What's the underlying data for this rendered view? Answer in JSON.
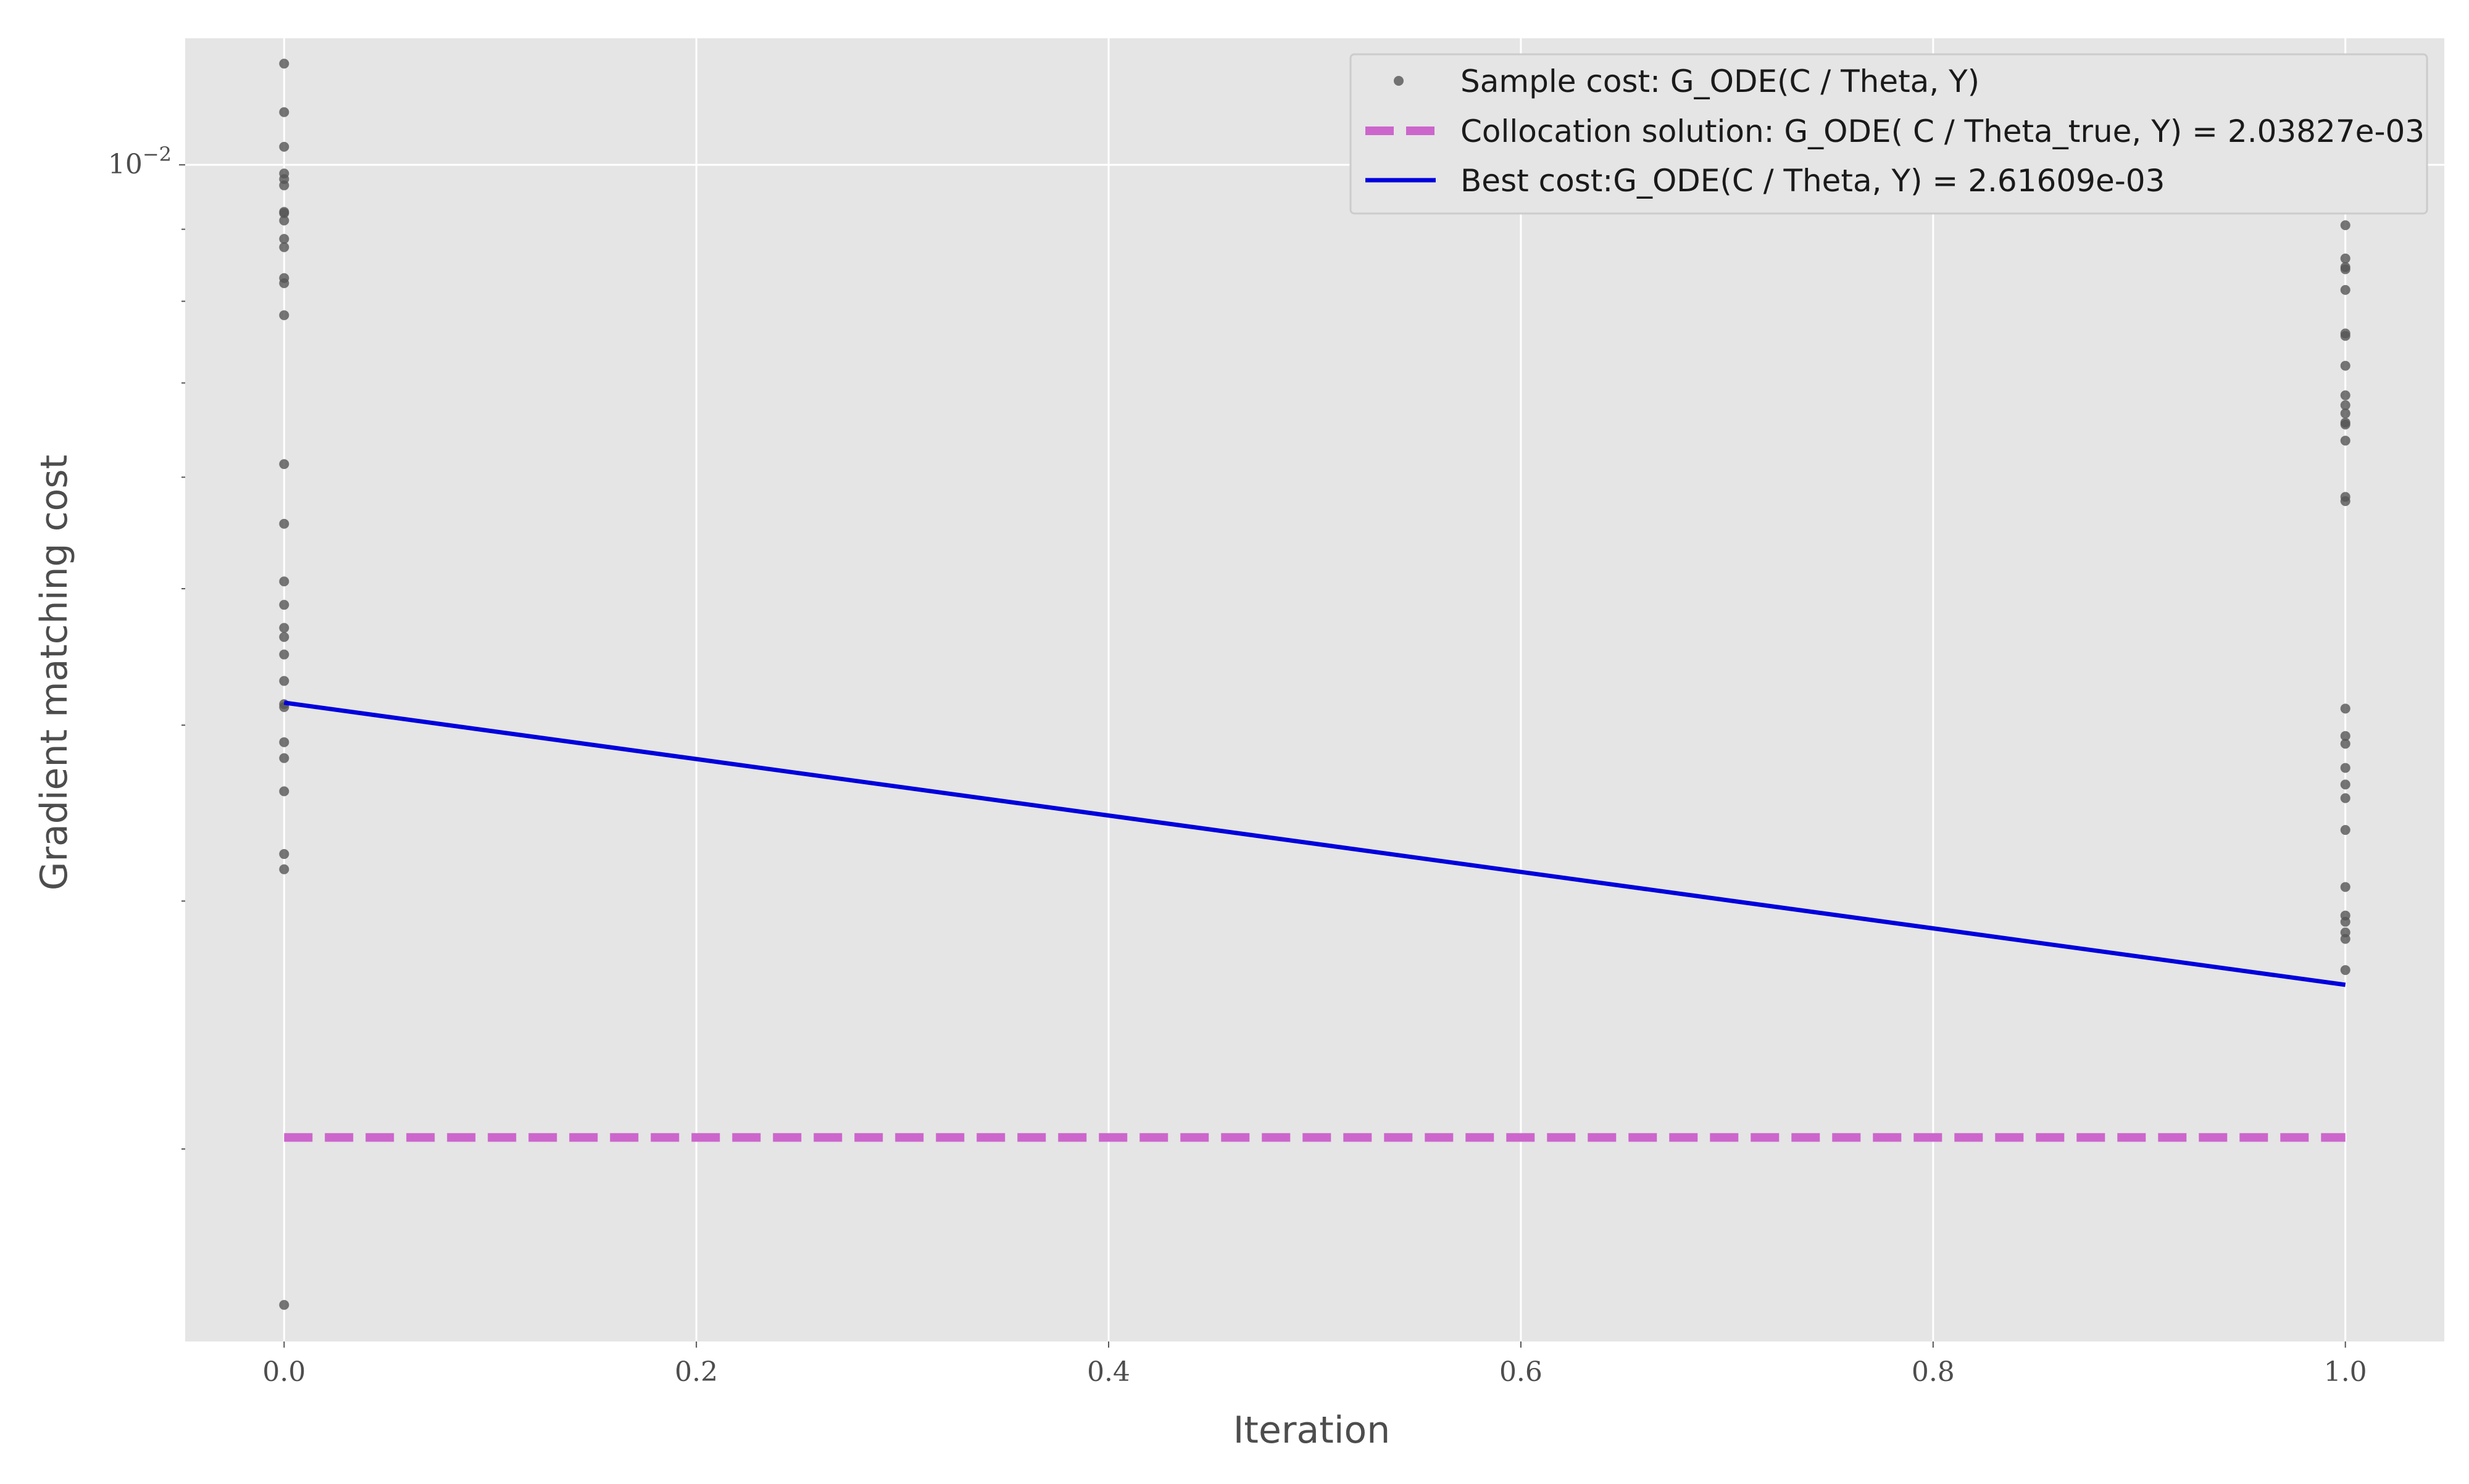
{
  "chart_data": {
    "type": "scatter",
    "title": "",
    "xlabel": "Iteration",
    "ylabel": "Gradient matching cost",
    "xscale": "linear",
    "yscale": "log",
    "xlim": [
      -0.048,
      1.048
    ],
    "ylim": [
      0.00146,
      0.0123
    ],
    "xticks": [
      0.0,
      0.2,
      0.4,
      0.6,
      0.8,
      1.0
    ],
    "xtick_labels": [
      "0.0",
      "0.2",
      "0.4",
      "0.6",
      "0.8",
      "1.0"
    ],
    "ytick_major": [
      {
        "value": 0.01,
        "base": "10",
        "exponent": "−2"
      }
    ],
    "ytick_minor": [
      0.002,
      0.003,
      0.004,
      0.005,
      0.006,
      0.007,
      0.008,
      0.009
    ],
    "grid": true,
    "legend_position": "upper right",
    "series": [
      {
        "name": "Sample cost: G_ODE(C / Theta, Y)",
        "kind": "scatter",
        "color": "#555555",
        "points": [
          [
            0,
            0.0118
          ],
          [
            0,
            0.0109
          ],
          [
            0,
            0.0103
          ],
          [
            0,
            0.00986
          ],
          [
            0,
            0.00977
          ],
          [
            0,
            0.00967
          ],
          [
            0,
            0.00926
          ],
          [
            0,
            0.00924
          ],
          [
            0,
            0.00913
          ],
          [
            0,
            0.00886
          ],
          [
            0,
            0.00874
          ],
          [
            0,
            0.00831
          ],
          [
            0,
            0.00824
          ],
          [
            0,
            0.00782
          ],
          [
            0,
            0.00613
          ],
          [
            0,
            0.00556
          ],
          [
            0,
            0.00506
          ],
          [
            0,
            0.00487
          ],
          [
            0,
            0.00469
          ],
          [
            0,
            0.00462
          ],
          [
            0,
            0.00449
          ],
          [
            0,
            0.0043
          ],
          [
            0,
            0.00414
          ],
          [
            0,
            0.00412
          ],
          [
            0,
            0.00389
          ],
          [
            0,
            0.00379
          ],
          [
            0,
            0.00359
          ],
          [
            0,
            0.00324
          ],
          [
            0,
            0.00316
          ],
          [
            0,
            0.00155
          ],
          [
            1,
            0.00906
          ],
          [
            1,
            0.00858
          ],
          [
            1,
            0.00846
          ],
          [
            1,
            0.00843
          ],
          [
            1,
            0.00815
          ],
          [
            1,
            0.00759
          ],
          [
            1,
            0.00756
          ],
          [
            1,
            0.0072
          ],
          [
            1,
            0.00686
          ],
          [
            1,
            0.00675
          ],
          [
            1,
            0.00666
          ],
          [
            1,
            0.00656
          ],
          [
            1,
            0.00654
          ],
          [
            1,
            0.00637
          ],
          [
            1,
            0.00581
          ],
          [
            1,
            0.00577
          ],
          [
            1,
            0.00411
          ],
          [
            1,
            0.00393
          ],
          [
            1,
            0.00388
          ],
          [
            1,
            0.00373
          ],
          [
            1,
            0.00363
          ],
          [
            1,
            0.00355
          ],
          [
            1,
            0.00337
          ],
          [
            1,
            0.00307
          ],
          [
            1,
            0.00293
          ],
          [
            1,
            0.0029
          ],
          [
            1,
            0.00285
          ],
          [
            1,
            0.00282
          ],
          [
            1,
            0.00268
          ]
        ]
      },
      {
        "name": "Collocation solution: G_ODE( C / Theta_true, Y) = 2.03827e-03",
        "kind": "line",
        "style": "dashed",
        "color": "#cc66cc",
        "points": [
          [
            0,
            0.00203827
          ],
          [
            1,
            0.00203827
          ]
        ]
      },
      {
        "name": "Best cost:G_ODE(C / Theta, Y) = 2.61609e-03",
        "kind": "line",
        "style": "solid",
        "color": "#0000dd",
        "points": [
          [
            0,
            0.00415
          ],
          [
            1,
            0.00261609
          ]
        ]
      }
    ]
  }
}
